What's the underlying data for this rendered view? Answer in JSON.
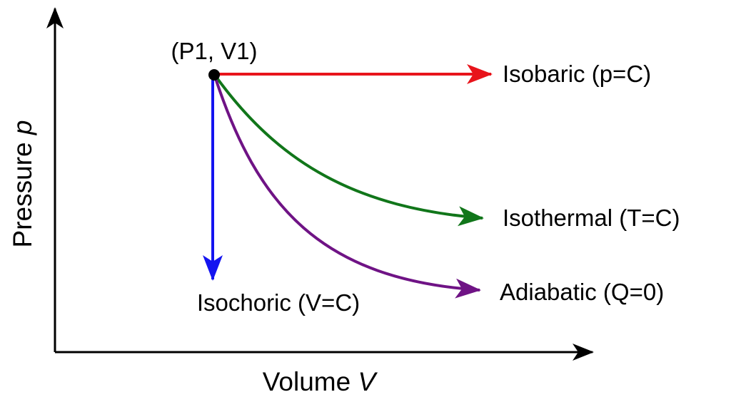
{
  "diagram": {
    "axes": {
      "x_label": {
        "text": "Volume ",
        "var": "V"
      },
      "y_label": {
        "text": "Pressure ",
        "var": "p"
      }
    },
    "start_point": {
      "label": "(P1, V1)"
    },
    "processes": [
      {
        "id": "isobaric",
        "label": "Isobaric (p=C)",
        "color": "#e8141b"
      },
      {
        "id": "isothermal",
        "label": "Isothermal (T=C)",
        "color": "#11761a"
      },
      {
        "id": "adiabatic",
        "label": "Adiabatic (Q=0)",
        "color": "#6f1385"
      },
      {
        "id": "isochoric",
        "label": "Isochoric (V=C)",
        "color": "#1414f0"
      }
    ],
    "axis_color": "#000000"
  }
}
